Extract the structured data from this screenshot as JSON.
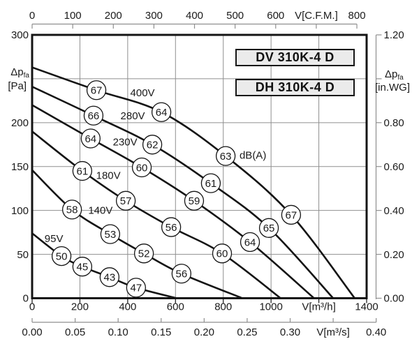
{
  "page": {
    "background": "#ffffff"
  },
  "chart_data": {
    "type": "line",
    "title_boxes": [
      "DV 310K-4 D",
      "DH 310K-4 D"
    ],
    "colors": {
      "curve": "#141414",
      "grid": "#8f8f8f",
      "frame": "#141414",
      "axis_secondary": "#8f8f8f",
      "text": "#1a1a1a",
      "box_fill": "#ebebeb",
      "box_border": "#161616",
      "circle_fill": "#ffffff"
    },
    "axes": {
      "x_main": {
        "label": "V[m³/h]",
        "range": [
          0,
          1400
        ],
        "tick_values": [
          0,
          200,
          400,
          600,
          800,
          1000,
          1200,
          1400
        ],
        "tick_labels": [
          "0",
          "200",
          "400",
          "600",
          "800",
          "1000",
          "V[m³/h]",
          "1400"
        ]
      },
      "x_top": {
        "label": "V[C.F.M.]",
        "range": [
          0,
          800
        ],
        "tick_values": [
          0,
          100,
          200,
          300,
          400,
          500,
          600,
          700,
          800
        ],
        "tick_labels": [
          "0",
          "100",
          "200",
          "300",
          "400",
          "500",
          "600",
          "V[C.F.M.]",
          "800"
        ],
        "m3h_per_cfm": 1.699
      },
      "x_bottom2": {
        "label": "V[m³/s]",
        "range": [
          0,
          0.4
        ],
        "tick_values": [
          0,
          0.05,
          0.1,
          0.15,
          0.2,
          0.25,
          0.3,
          0.35,
          0.4
        ],
        "tick_labels": [
          "0.00",
          "0.05",
          "0.10",
          "0.15",
          "0.20",
          "0.25",
          "0.30",
          "V[m³/s]",
          "0.40"
        ],
        "m3h_per_m3s": 3600
      },
      "y_left": {
        "label": "Δp",
        "label_sub": "fa",
        "label_unit": "[Pa]",
        "range": [
          0,
          300
        ],
        "tick_values": [
          0,
          50,
          100,
          150,
          200,
          250,
          300
        ],
        "tick_labels": [
          "0",
          "50",
          "100",
          "150",
          "200",
          "",
          "300"
        ]
      },
      "y_right": {
        "label": "Δp",
        "label_sub": "fa",
        "label_unit": "[in.WG]",
        "range": [
          0,
          1.2
        ],
        "tick_values": [
          0,
          0.2,
          0.4,
          0.6,
          0.8,
          1.0,
          1.2
        ],
        "tick_labels": [
          "0.00",
          "0.20",
          "0.40",
          "0.60",
          "0.80",
          "",
          "1.20"
        ]
      }
    },
    "noise_unit_label": {
      "text": "dB(A)",
      "v": 868,
      "pa": 163
    },
    "series": [
      {
        "name": "400V",
        "label_pos": {
          "v": 462,
          "pa": 234
        },
        "points": [
          [
            0,
            263
          ],
          [
            269,
            237
          ],
          [
            541,
            212
          ],
          [
            810,
            162
          ],
          [
            1084,
            95
          ],
          [
            1350,
            0
          ]
        ],
        "db_labels": [
          {
            "value": "67",
            "index": 1
          },
          {
            "value": "64",
            "index": 2
          },
          {
            "value": "63",
            "index": 3
          },
          {
            "value": "67",
            "index": 4
          }
        ]
      },
      {
        "name": "280V",
        "label_pos": {
          "v": 421,
          "pa": 208
        },
        "points": [
          [
            0,
            241
          ],
          [
            257,
            208
          ],
          [
            503,
            175
          ],
          [
            748,
            131
          ],
          [
            991,
            80
          ],
          [
            1260,
            0
          ]
        ],
        "db_labels": [
          {
            "value": "66",
            "index": 1
          },
          {
            "value": "62",
            "index": 2
          },
          {
            "value": "61",
            "index": 3
          },
          {
            "value": "65",
            "index": 4
          }
        ]
      },
      {
        "name": "230V",
        "label_pos": {
          "v": 389,
          "pa": 178
        },
        "points": [
          [
            0,
            220
          ],
          [
            245,
            182
          ],
          [
            459,
            149
          ],
          [
            678,
            111
          ],
          [
            912,
            64
          ],
          [
            1180,
            0
          ]
        ],
        "db_labels": [
          {
            "value": "64",
            "index": 1
          },
          {
            "value": "60",
            "index": 2
          },
          {
            "value": "59",
            "index": 3
          },
          {
            "value": "64",
            "index": 4
          }
        ]
      },
      {
        "name": "180V",
        "label_pos": {
          "v": 319,
          "pa": 140
        },
        "points": [
          [
            0,
            190
          ],
          [
            210,
            145
          ],
          [
            392,
            111
          ],
          [
            582,
            81
          ],
          [
            795,
            51
          ],
          [
            1040,
            0
          ]
        ],
        "db_labels": [
          {
            "value": "61",
            "index": 1
          },
          {
            "value": "57",
            "index": 2
          },
          {
            "value": "56",
            "index": 3
          },
          {
            "value": "60",
            "index": 4
          }
        ]
      },
      {
        "name": "140V",
        "label_pos": {
          "v": 286,
          "pa": 100
        },
        "points": [
          [
            0,
            146
          ],
          [
            167,
            101
          ],
          [
            327,
            73
          ],
          [
            468,
            51
          ],
          [
            625,
            28
          ],
          [
            880,
            0
          ]
        ],
        "db_labels": [
          {
            "value": "58",
            "index": 1
          },
          {
            "value": "53",
            "index": 2
          },
          {
            "value": "52",
            "index": 3
          },
          {
            "value": "56",
            "index": 4
          }
        ]
      },
      {
        "name": "95V",
        "label_pos": {
          "v": 91,
          "pa": 68
        },
        "points": [
          [
            0,
            74
          ],
          [
            123,
            48
          ],
          [
            210,
            36
          ],
          [
            324,
            24
          ],
          [
            435,
            12
          ],
          [
            605,
            0
          ]
        ],
        "db_labels": [
          {
            "value": "50",
            "index": 1
          },
          {
            "value": "45",
            "index": 2
          },
          {
            "value": "43",
            "index": 3
          },
          {
            "value": "47",
            "index": 4
          }
        ]
      }
    ]
  }
}
